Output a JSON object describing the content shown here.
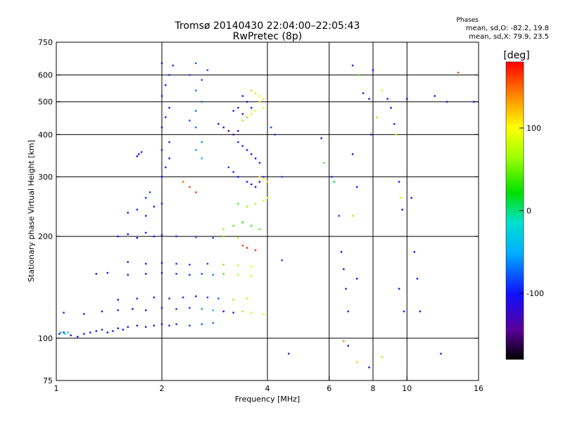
{
  "chart_data": {
    "type": "scatter",
    "title": "Tromsø 20140430 22:04:00–22:05:43",
    "subtitle": "RwPretec (8p)",
    "xlabel": "Frequency [MHz]",
    "ylabel": "Stationary phase Virtual Height [km]",
    "x_scale": "log",
    "y_scale": "log",
    "xlim": [
      1,
      16
    ],
    "ylim": [
      75,
      750
    ],
    "x_ticks": [
      1,
      2,
      4,
      6,
      8,
      10,
      16
    ],
    "y_ticks": [
      75,
      100,
      200,
      300,
      400,
      500,
      600,
      750
    ],
    "x_gridlines": [
      2,
      4,
      6,
      8,
      10
    ],
    "y_gridlines": [
      100,
      200,
      300,
      400,
      500,
      600
    ],
    "grid": true,
    "stats": {
      "header": "Phases",
      "line_o": "mean, sd,O: -82.2, 19.8",
      "line_x": "mean, sd,X:  79.9, 23.5"
    },
    "colorbar": {
      "label": "[deg]",
      "range": [
        -180,
        180
      ],
      "ticks": [
        100,
        0,
        -100
      ]
    },
    "series": [
      {
        "points": [
          [
            1.02,
            103,
            -100
          ],
          [
            1.05,
            104,
            -95
          ],
          [
            1.1,
            102,
            -110
          ],
          [
            1.15,
            101,
            -105
          ],
          [
            1.2,
            103,
            -100
          ],
          [
            1.25,
            104,
            -98
          ],
          [
            1.3,
            105,
            -102
          ],
          [
            1.35,
            106,
            -95
          ],
          [
            1.4,
            104,
            -100
          ],
          [
            1.45,
            105,
            -108
          ],
          [
            1.5,
            107,
            -100
          ],
          [
            1.55,
            106,
            -96
          ],
          [
            1.6,
            108,
            -104
          ],
          [
            1.7,
            109,
            -100
          ],
          [
            1.8,
            108,
            -98
          ],
          [
            1.9,
            109,
            -102
          ],
          [
            2.0,
            110,
            -100
          ],
          [
            2.1,
            109,
            -94
          ],
          [
            2.2,
            110,
            -98
          ],
          [
            2.4,
            109,
            -90
          ],
          [
            2.6,
            110,
            -80
          ],
          [
            2.8,
            111,
            -72
          ],
          [
            1.03,
            104,
            -40
          ],
          [
            1.06,
            103,
            -30
          ],
          [
            1.08,
            104,
            -20
          ],
          [
            1.05,
            119,
            -100
          ],
          [
            1.2,
            118,
            -105
          ],
          [
            1.35,
            120,
            -100
          ],
          [
            1.5,
            121,
            -98
          ],
          [
            1.65,
            122,
            -104
          ],
          [
            1.8,
            121,
            -100
          ],
          [
            2.0,
            123,
            -96
          ],
          [
            2.2,
            122,
            -92
          ],
          [
            2.4,
            123,
            -88
          ],
          [
            2.6,
            122,
            -60
          ],
          [
            2.8,
            121,
            -40
          ],
          [
            3.0,
            120,
            -110
          ],
          [
            3.2,
            119,
            -115
          ],
          [
            3.4,
            120,
            60
          ],
          [
            3.6,
            119,
            80
          ],
          [
            3.9,
            118,
            90
          ],
          [
            1.5,
            130,
            -100
          ],
          [
            1.7,
            131,
            -98
          ],
          [
            1.9,
            132,
            -102
          ],
          [
            2.1,
            131,
            -95
          ],
          [
            2.3,
            132,
            -90
          ],
          [
            2.5,
            133,
            -100
          ],
          [
            2.7,
            132,
            -85
          ],
          [
            2.9,
            131,
            -80
          ],
          [
            3.2,
            130,
            60
          ],
          [
            3.5,
            131,
            80
          ],
          [
            1.3,
            155,
            -100
          ],
          [
            1.4,
            156,
            -105
          ],
          [
            1.6,
            154,
            -100
          ],
          [
            1.8,
            155,
            -98
          ],
          [
            2.0,
            156,
            -100
          ],
          [
            2.2,
            155,
            -95
          ],
          [
            2.4,
            154,
            -90
          ],
          [
            2.6,
            155,
            -80
          ],
          [
            2.8,
            154,
            -70
          ],
          [
            3.0,
            155,
            40
          ],
          [
            3.3,
            154,
            70
          ],
          [
            3.6,
            153,
            80
          ],
          [
            1.6,
            168,
            -100
          ],
          [
            1.8,
            166,
            -98
          ],
          [
            2.0,
            167,
            -102
          ],
          [
            2.2,
            166,
            -96
          ],
          [
            2.4,
            165,
            -90
          ],
          [
            2.7,
            166,
            -84
          ],
          [
            3.0,
            165,
            50
          ],
          [
            3.3,
            164,
            75
          ],
          [
            3.6,
            163,
            85
          ],
          [
            1.5,
            200,
            -100
          ],
          [
            1.6,
            203,
            -105
          ],
          [
            1.7,
            198,
            -100
          ],
          [
            1.8,
            205,
            -98
          ],
          [
            1.9,
            200,
            -102
          ],
          [
            2.0,
            202,
            -96
          ],
          [
            2.2,
            200,
            -90
          ],
          [
            2.5,
            199,
            -88
          ],
          [
            2.8,
            198,
            -80
          ],
          [
            3.0,
            200,
            45
          ],
          [
            3.3,
            198,
            70
          ],
          [
            3.5,
            185,
            170
          ],
          [
            3.7,
            182,
            165
          ],
          [
            3.4,
            188,
            160
          ],
          [
            1.6,
            235,
            -100
          ],
          [
            1.7,
            240,
            -95
          ],
          [
            1.8,
            230,
            -105
          ],
          [
            1.9,
            245,
            -100
          ],
          [
            2.0,
            250,
            -98
          ],
          [
            2.0,
            300,
            -100
          ],
          [
            2.05,
            320,
            -96
          ],
          [
            2.1,
            340,
            -102
          ],
          [
            2.0,
            360,
            -100
          ],
          [
            2.1,
            380,
            -95
          ],
          [
            2.0,
            420,
            -100
          ],
          [
            2.05,
            450,
            -98
          ],
          [
            2.1,
            480,
            -102
          ],
          [
            2.0,
            520,
            -96
          ],
          [
            2.05,
            560,
            -100
          ],
          [
            2.1,
            600,
            -94
          ],
          [
            2.15,
            640,
            -90
          ],
          [
            2.0,
            650,
            -100
          ],
          [
            2.4,
            440,
            -80
          ],
          [
            2.5,
            470,
            -75
          ],
          [
            2.6,
            500,
            -70
          ],
          [
            2.5,
            540,
            -72
          ],
          [
            2.6,
            580,
            -78
          ],
          [
            2.7,
            620,
            -80
          ],
          [
            2.5,
            650,
            -76
          ],
          [
            2.4,
            600,
            -82
          ],
          [
            2.5,
            420,
            -70
          ],
          [
            2.6,
            380,
            -60
          ],
          [
            2.5,
            360,
            -55
          ],
          [
            2.6,
            340,
            -50
          ],
          [
            1.7,
            345,
            -100
          ],
          [
            1.72,
            350,
            -98
          ],
          [
            1.75,
            355,
            -96
          ],
          [
            1.8,
            260,
            -90
          ],
          [
            1.85,
            270,
            -88
          ],
          [
            2.9,
            430,
            -100
          ],
          [
            3.0,
            420,
            -120
          ],
          [
            3.1,
            410,
            -130
          ],
          [
            3.2,
            400,
            -140
          ],
          [
            3.3,
            410,
            -135
          ],
          [
            3.2,
            470,
            -120
          ],
          [
            3.3,
            480,
            -115
          ],
          [
            3.4,
            460,
            -125
          ],
          [
            3.5,
            450,
            -110
          ],
          [
            3.4,
            520,
            -110
          ],
          [
            3.5,
            500,
            -105
          ],
          [
            3.6,
            480,
            -100
          ],
          [
            3.6,
            540,
            120
          ],
          [
            3.7,
            530,
            110
          ],
          [
            3.8,
            520,
            100
          ],
          [
            3.9,
            510,
            105
          ],
          [
            3.8,
            500,
            95
          ],
          [
            3.9,
            480,
            85
          ],
          [
            3.7,
            470,
            90
          ],
          [
            3.6,
            460,
            80
          ],
          [
            3.5,
            450,
            70
          ],
          [
            3.4,
            440,
            60
          ],
          [
            3.3,
            380,
            -100
          ],
          [
            3.4,
            370,
            -95
          ],
          [
            3.5,
            360,
            -98
          ],
          [
            3.6,
            350,
            -102
          ],
          [
            3.7,
            340,
            -100
          ],
          [
            3.8,
            330,
            -96
          ],
          [
            3.5,
            290,
            -100
          ],
          [
            3.6,
            285,
            -105
          ],
          [
            3.7,
            280,
            -110
          ],
          [
            3.8,
            290,
            -100
          ],
          [
            3.9,
            300,
            -98
          ],
          [
            3.8,
            300,
            110
          ],
          [
            3.9,
            295,
            100
          ],
          [
            4.0,
            290,
            105
          ],
          [
            3.1,
            320,
            -90
          ],
          [
            3.2,
            310,
            -95
          ],
          [
            3.3,
            300,
            -100
          ],
          [
            3.3,
            250,
            40
          ],
          [
            3.5,
            245,
            60
          ],
          [
            3.7,
            250,
            70
          ],
          [
            3.9,
            255,
            80
          ],
          [
            4.0,
            260,
            90
          ],
          [
            3.0,
            210,
            60
          ],
          [
            3.2,
            215,
            40
          ],
          [
            3.4,
            220,
            30
          ],
          [
            3.6,
            215,
            35
          ],
          [
            3.8,
            210,
            45
          ],
          [
            2.3,
            290,
            150
          ],
          [
            2.4,
            280,
            160
          ],
          [
            2.5,
            270,
            165
          ],
          [
            4.4,
            300,
            -80
          ],
          [
            4.4,
            170,
            -90
          ],
          [
            4.6,
            90,
            -110
          ],
          [
            4.1,
            420,
            -80
          ],
          [
            4.2,
            400,
            -90
          ],
          [
            5.7,
            390,
            -100
          ],
          [
            5.8,
            330,
            40
          ],
          [
            6.1,
            300,
            -100
          ],
          [
            6.2,
            290,
            10
          ],
          [
            6.4,
            230,
            -90
          ],
          [
            6.5,
            180,
            -100
          ],
          [
            6.6,
            160,
            -110
          ],
          [
            6.7,
            140,
            -95
          ],
          [
            6.8,
            120,
            -100
          ],
          [
            7.0,
            350,
            -100
          ],
          [
            7.2,
            280,
            -95
          ],
          [
            7.0,
            640,
            -100
          ],
          [
            7.3,
            600,
            40
          ],
          [
            7.0,
            230,
            60
          ],
          [
            7.2,
            150,
            -100
          ],
          [
            7.5,
            530,
            -110
          ],
          [
            7.8,
            510,
            -105
          ],
          [
            7.9,
            400,
            -110
          ],
          [
            8.2,
            450,
            120
          ],
          [
            8.0,
            620,
            -100
          ],
          [
            8.5,
            540,
            80
          ],
          [
            8.8,
            510,
            -100
          ],
          [
            9.0,
            480,
            -105
          ],
          [
            9.2,
            430,
            -100
          ],
          [
            9.3,
            400,
            80
          ],
          [
            9.5,
            290,
            -100
          ],
          [
            9.6,
            260,
            80
          ],
          [
            9.7,
            240,
            -100
          ],
          [
            9.5,
            140,
            -100
          ],
          [
            9.8,
            120,
            -100
          ],
          [
            10.0,
            510,
            -100
          ],
          [
            10.3,
            260,
            -100
          ],
          [
            10.5,
            180,
            -100
          ],
          [
            10.7,
            150,
            -100
          ],
          [
            10.9,
            120,
            -100
          ],
          [
            12.0,
            520,
            -100
          ],
          [
            12.5,
            90,
            -100
          ],
          [
            13.0,
            500,
            -100
          ],
          [
            14.0,
            610,
            160
          ],
          [
            15.5,
            500,
            -100
          ],
          [
            7.2,
            85,
            120
          ],
          [
            7.8,
            82,
            -100
          ],
          [
            8.5,
            88,
            60
          ],
          [
            6.6,
            98,
            140
          ],
          [
            6.8,
            95,
            -100
          ]
        ]
      }
    ]
  }
}
